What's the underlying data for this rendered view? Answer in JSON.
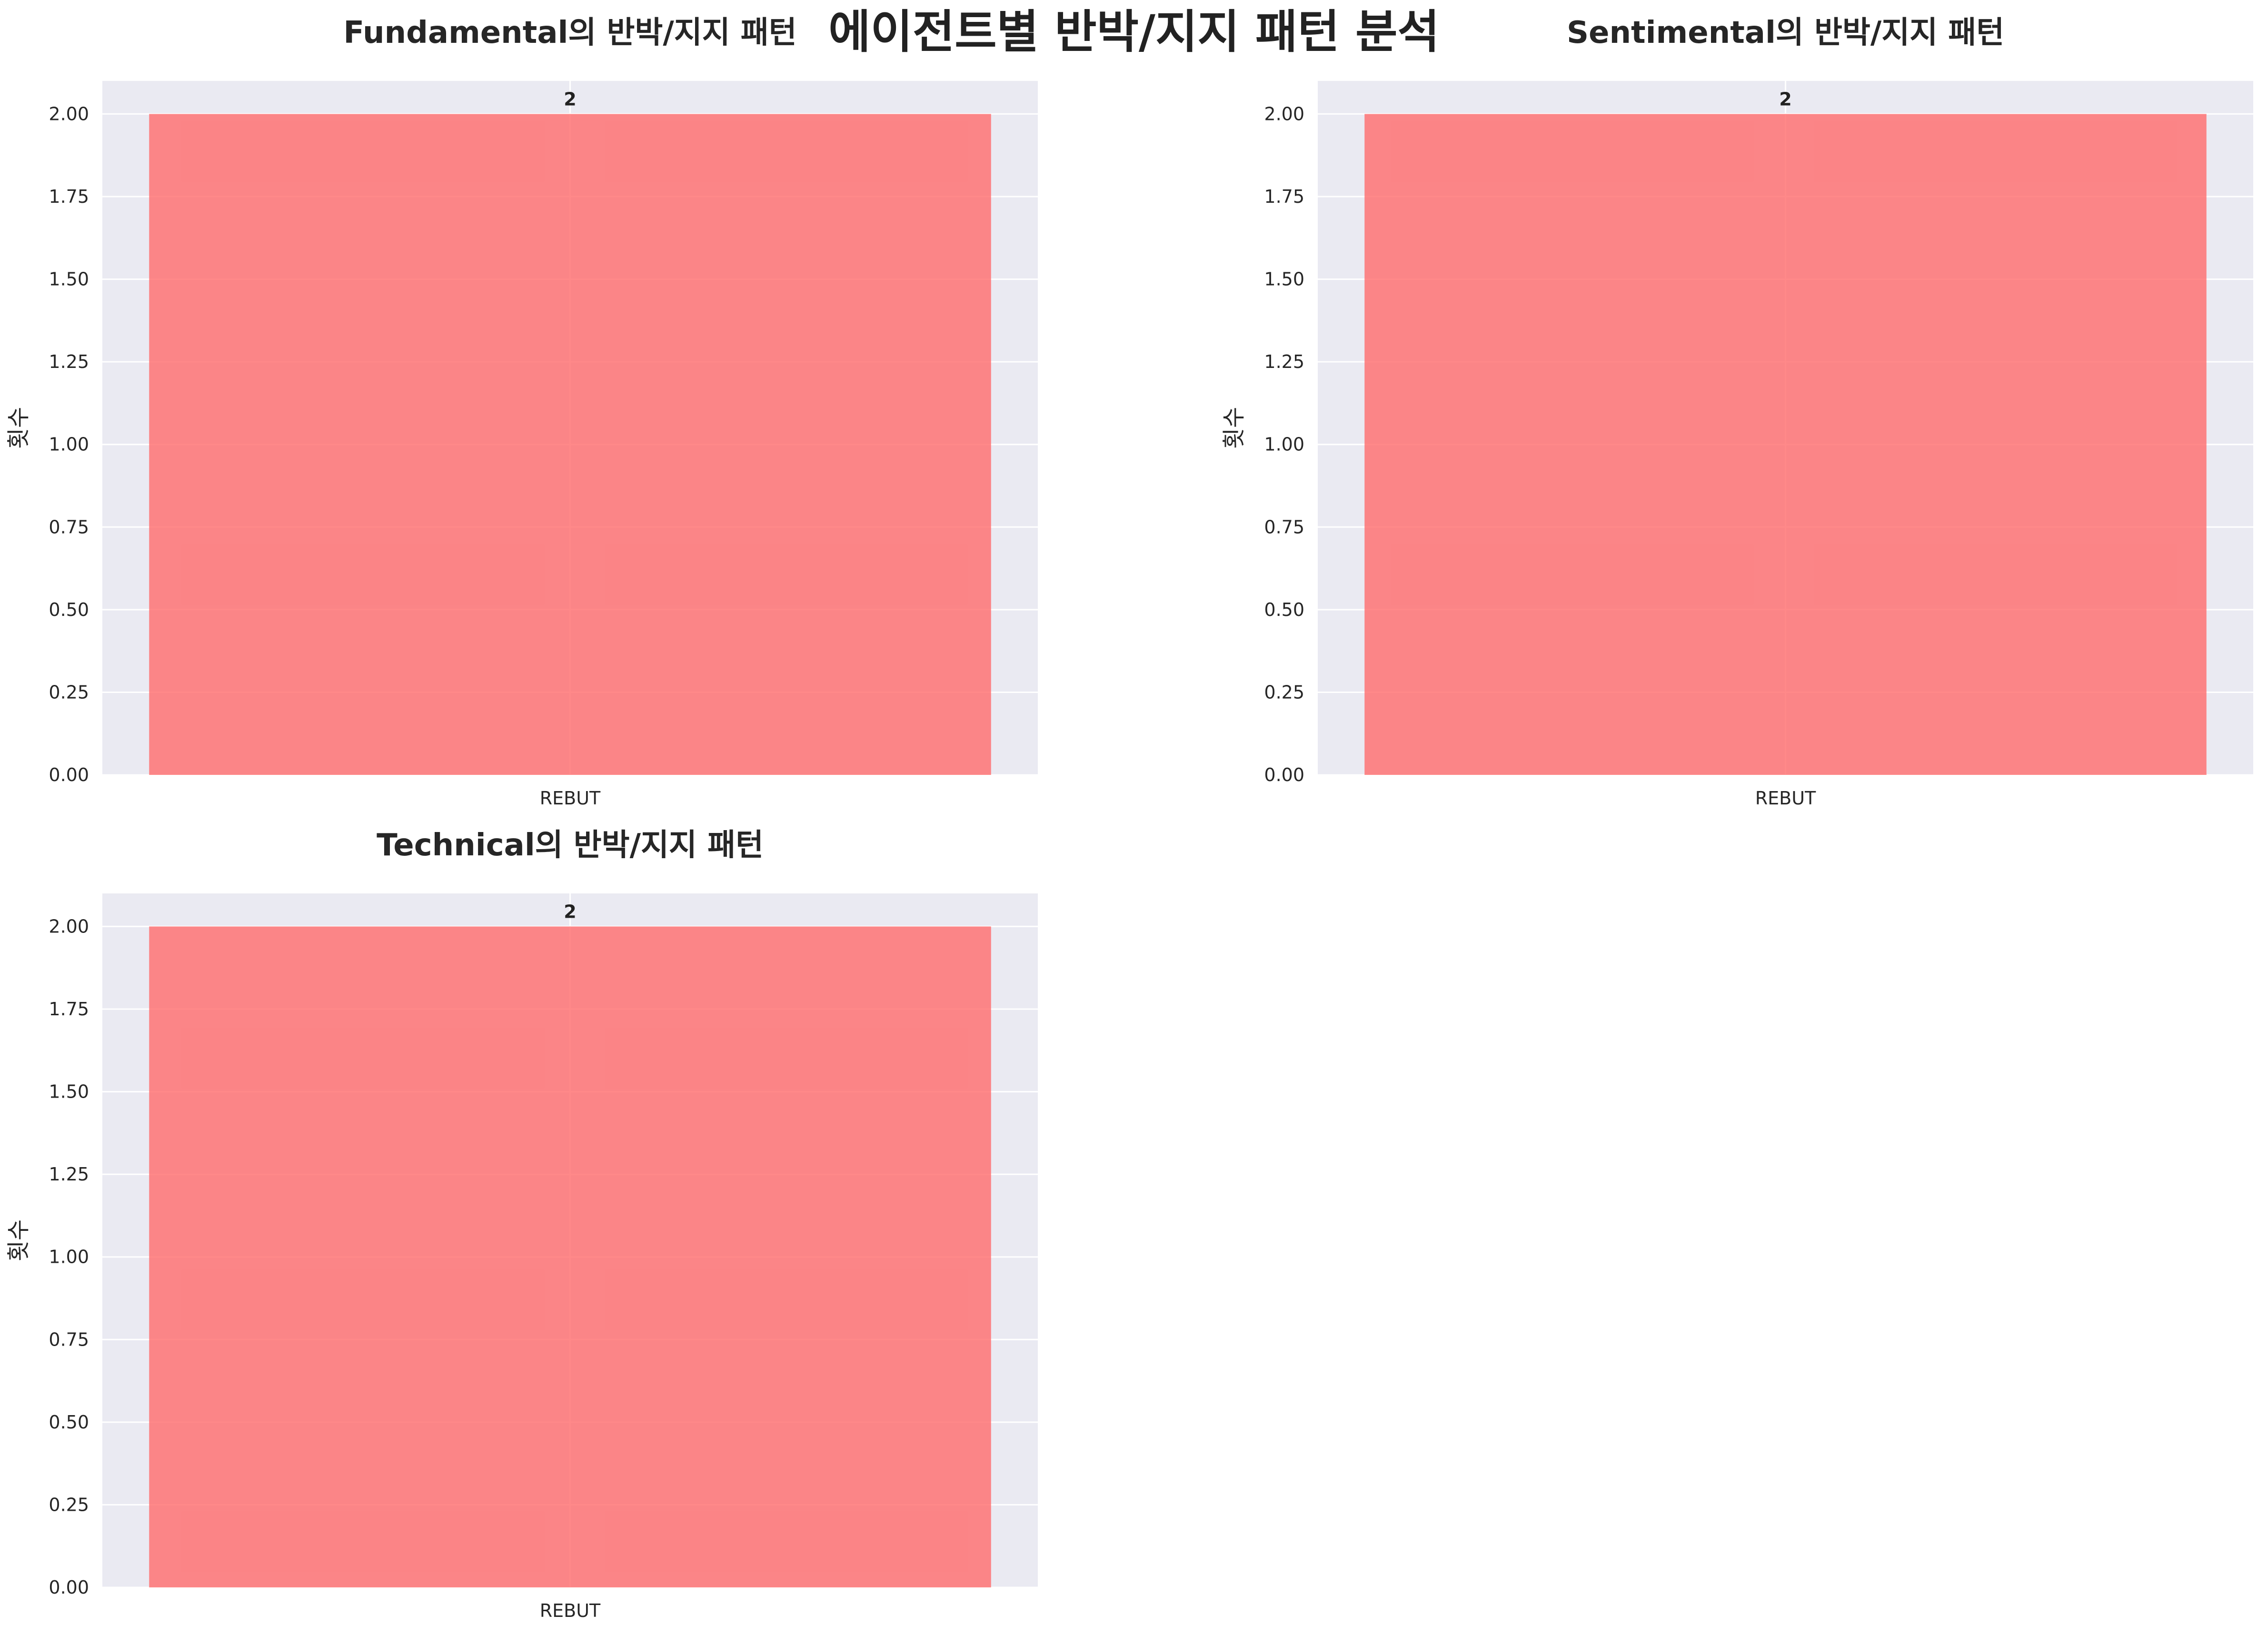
{
  "figure": {
    "title": "에이전트별 반박/지지 패턴 분석"
  },
  "chart_data": [
    {
      "type": "bar",
      "title": "Fundamental의 반박/지지 패턴",
      "categories": [
        "REBUT"
      ],
      "values": [
        2
      ],
      "data_labels": [
        "2"
      ],
      "xlabel": "",
      "ylabel": "횟수",
      "ylim": [
        0,
        2.1
      ],
      "yticks": [
        0,
        0.25,
        0.5,
        0.75,
        1.0,
        1.25,
        1.5,
        1.75,
        2.0
      ],
      "ytick_labels": [
        "0.00",
        "0.25",
        "0.50",
        "0.75",
        "1.00",
        "1.25",
        "1.50",
        "1.75",
        "2.00"
      ],
      "grid": true,
      "bar_color": "#FF6B6B",
      "background": "#EAEAF2"
    },
    {
      "type": "bar",
      "title": "Sentimental의 반박/지지 패턴",
      "categories": [
        "REBUT"
      ],
      "values": [
        2
      ],
      "data_labels": [
        "2"
      ],
      "xlabel": "",
      "ylabel": "횟수",
      "ylim": [
        0,
        2.1
      ],
      "yticks": [
        0,
        0.25,
        0.5,
        0.75,
        1.0,
        1.25,
        1.5,
        1.75,
        2.0
      ],
      "ytick_labels": [
        "0.00",
        "0.25",
        "0.50",
        "0.75",
        "1.00",
        "1.25",
        "1.50",
        "1.75",
        "2.00"
      ],
      "grid": true,
      "bar_color": "#FF6B6B",
      "background": "#EAEAF2"
    },
    {
      "type": "bar",
      "title": "Technical의 반박/지지 패턴",
      "categories": [
        "REBUT"
      ],
      "values": [
        2
      ],
      "data_labels": [
        "2"
      ],
      "xlabel": "",
      "ylabel": "횟수",
      "ylim": [
        0,
        2.1
      ],
      "yticks": [
        0,
        0.25,
        0.5,
        0.75,
        1.0,
        1.25,
        1.5,
        1.75,
        2.0
      ],
      "ytick_labels": [
        "0.00",
        "0.25",
        "0.50",
        "0.75",
        "1.00",
        "1.25",
        "1.50",
        "1.75",
        "2.00"
      ],
      "grid": true,
      "bar_color": "#FF6B6B",
      "background": "#EAEAF2"
    }
  ]
}
